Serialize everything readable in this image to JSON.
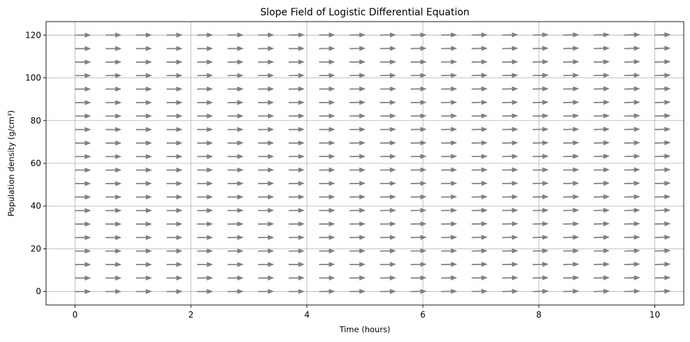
{
  "chart_data": {
    "type": "quiver",
    "title": "Slope Field of Logistic Differential Equation",
    "xlabel": "Time (hours)",
    "ylabel": "Population density (g/cm³)",
    "xlim": [
      -0.5,
      10.5
    ],
    "ylim": [
      -6.3,
      126.3
    ],
    "xticks": [
      0,
      2,
      4,
      6,
      8,
      10
    ],
    "yticks": [
      0,
      20,
      40,
      60,
      80,
      100,
      120
    ],
    "grid": true,
    "arrow_color": "#808080",
    "x_grid": {
      "start": 0,
      "stop": 10,
      "count": 20
    },
    "y_grid": {
      "start": 0,
      "stop": 120,
      "count": 20
    },
    "slope_note_free": true,
    "slopes": {
      "t_min_slope": 0.0,
      "t_max_slope": 0.03
    }
  }
}
